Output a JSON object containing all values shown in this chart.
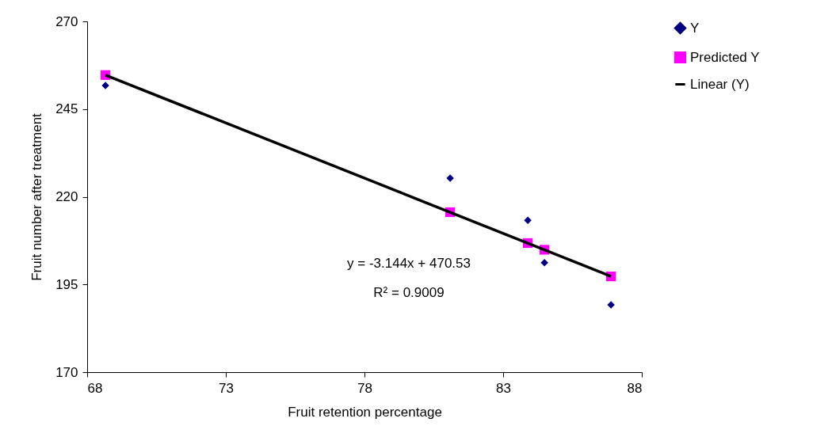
{
  "chart_data": {
    "type": "scatter",
    "xlabel": "Fruit retention percentage",
    "ylabel": "Fruit number after treatment",
    "xlim": [
      68,
      88
    ],
    "xticks": [
      68,
      73,
      78,
      83,
      88
    ],
    "ylim": [
      170,
      270
    ],
    "yticks": [
      170,
      195,
      220,
      245,
      270
    ],
    "grid": false,
    "legend": "right",
    "annotations": [
      "y = -3.144x + 470.53",
      "R² = 0.9009"
    ],
    "series": [
      {
        "name": "Y",
        "type": "scatter",
        "marker": "diamond",
        "color": "#000080",
        "x": [
          68.66,
          81.09,
          83.89,
          84.49,
          86.89
        ],
        "values": [
          251.7,
          225.3,
          213.3,
          201.2,
          189.2
        ]
      },
      {
        "name": "Predicted Y",
        "type": "scatter",
        "marker": "square",
        "color": "#ff00ff",
        "x": [
          68.66,
          81.09,
          83.89,
          84.49,
          86.89
        ],
        "values": [
          254.7,
          215.6,
          206.8,
          204.9,
          197.3
        ]
      },
      {
        "name": "Linear (Y)",
        "type": "line",
        "marker": "none",
        "line_style": "solid",
        "color": "#000000",
        "x": [
          68.66,
          86.89
        ],
        "values": [
          254.7,
          197.3
        ]
      }
    ]
  }
}
